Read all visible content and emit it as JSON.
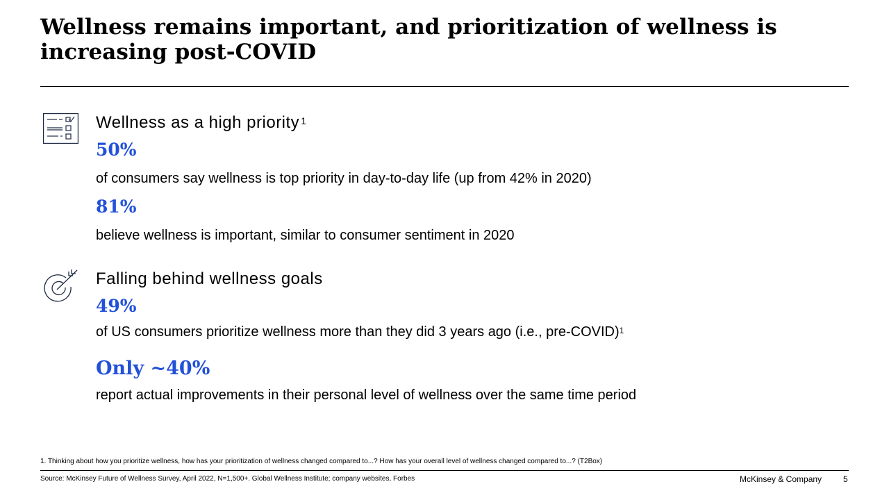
{
  "title": "Wellness remains important, and prioritization of wellness is increasing post-COVID",
  "colors": {
    "accent": "#2251d9",
    "icon_stroke": "#1f2a44"
  },
  "sections": [
    {
      "icon": "checklist-icon",
      "heading": "Wellness as a high priority",
      "heading_sup": "1",
      "stats": [
        {
          "value": "50%",
          "desc": "of consumers say wellness is top priority in day-to-day life (up from 42% in 2020)",
          "desc_sup": ""
        },
        {
          "value": "81%",
          "desc": "believe wellness is important, similar to consumer sentiment in 2020",
          "desc_sup": ""
        }
      ]
    },
    {
      "icon": "target-arrow-icon",
      "heading": "Falling behind wellness goals",
      "heading_sup": "",
      "stats": [
        {
          "value": "49%",
          "desc": "of US consumers prioritize wellness more than they did 3 years ago  (i.e., pre-COVID)",
          "desc_sup": "1"
        },
        {
          "value": "Only ~40%",
          "desc": "report actual improvements in their personal level of wellness over the same time period",
          "desc_sup": ""
        }
      ]
    }
  ],
  "footnote": "1. Thinking about how you prioritize wellness, how has your prioritization of wellness changed compared to...? How has your overall level of wellness changed compared to...? (T2Box)",
  "source": "Source: McKinsey Future of Wellness Survey, April 2022, N=1,500+. Global Wellness Institute; company websites, Forbes",
  "brand": "McKinsey & Company",
  "page_number": "5"
}
